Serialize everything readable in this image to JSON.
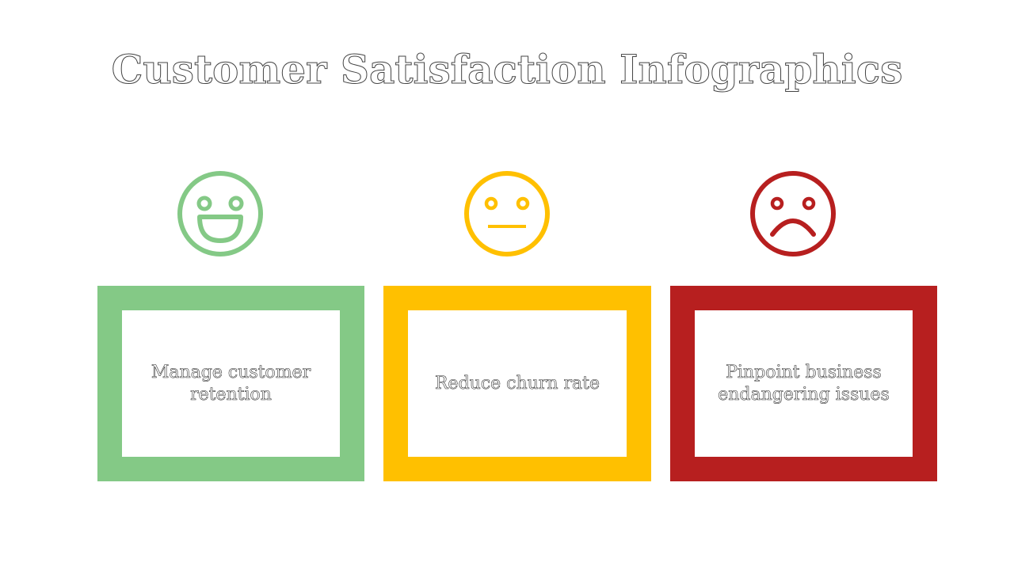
{
  "slide": {
    "title": "Customer Satisfaction Infographics",
    "items": [
      {
        "face_icon": "happy-face-icon",
        "color": "#84C986",
        "text": "Manage customer retention"
      },
      {
        "face_icon": "neutral-face-icon",
        "color": "#FFC000",
        "text": "Reduce churn rate"
      },
      {
        "face_icon": "sad-face-icon",
        "color": "#B71F1F",
        "text": "Pinpoint business endangering issues"
      }
    ]
  }
}
